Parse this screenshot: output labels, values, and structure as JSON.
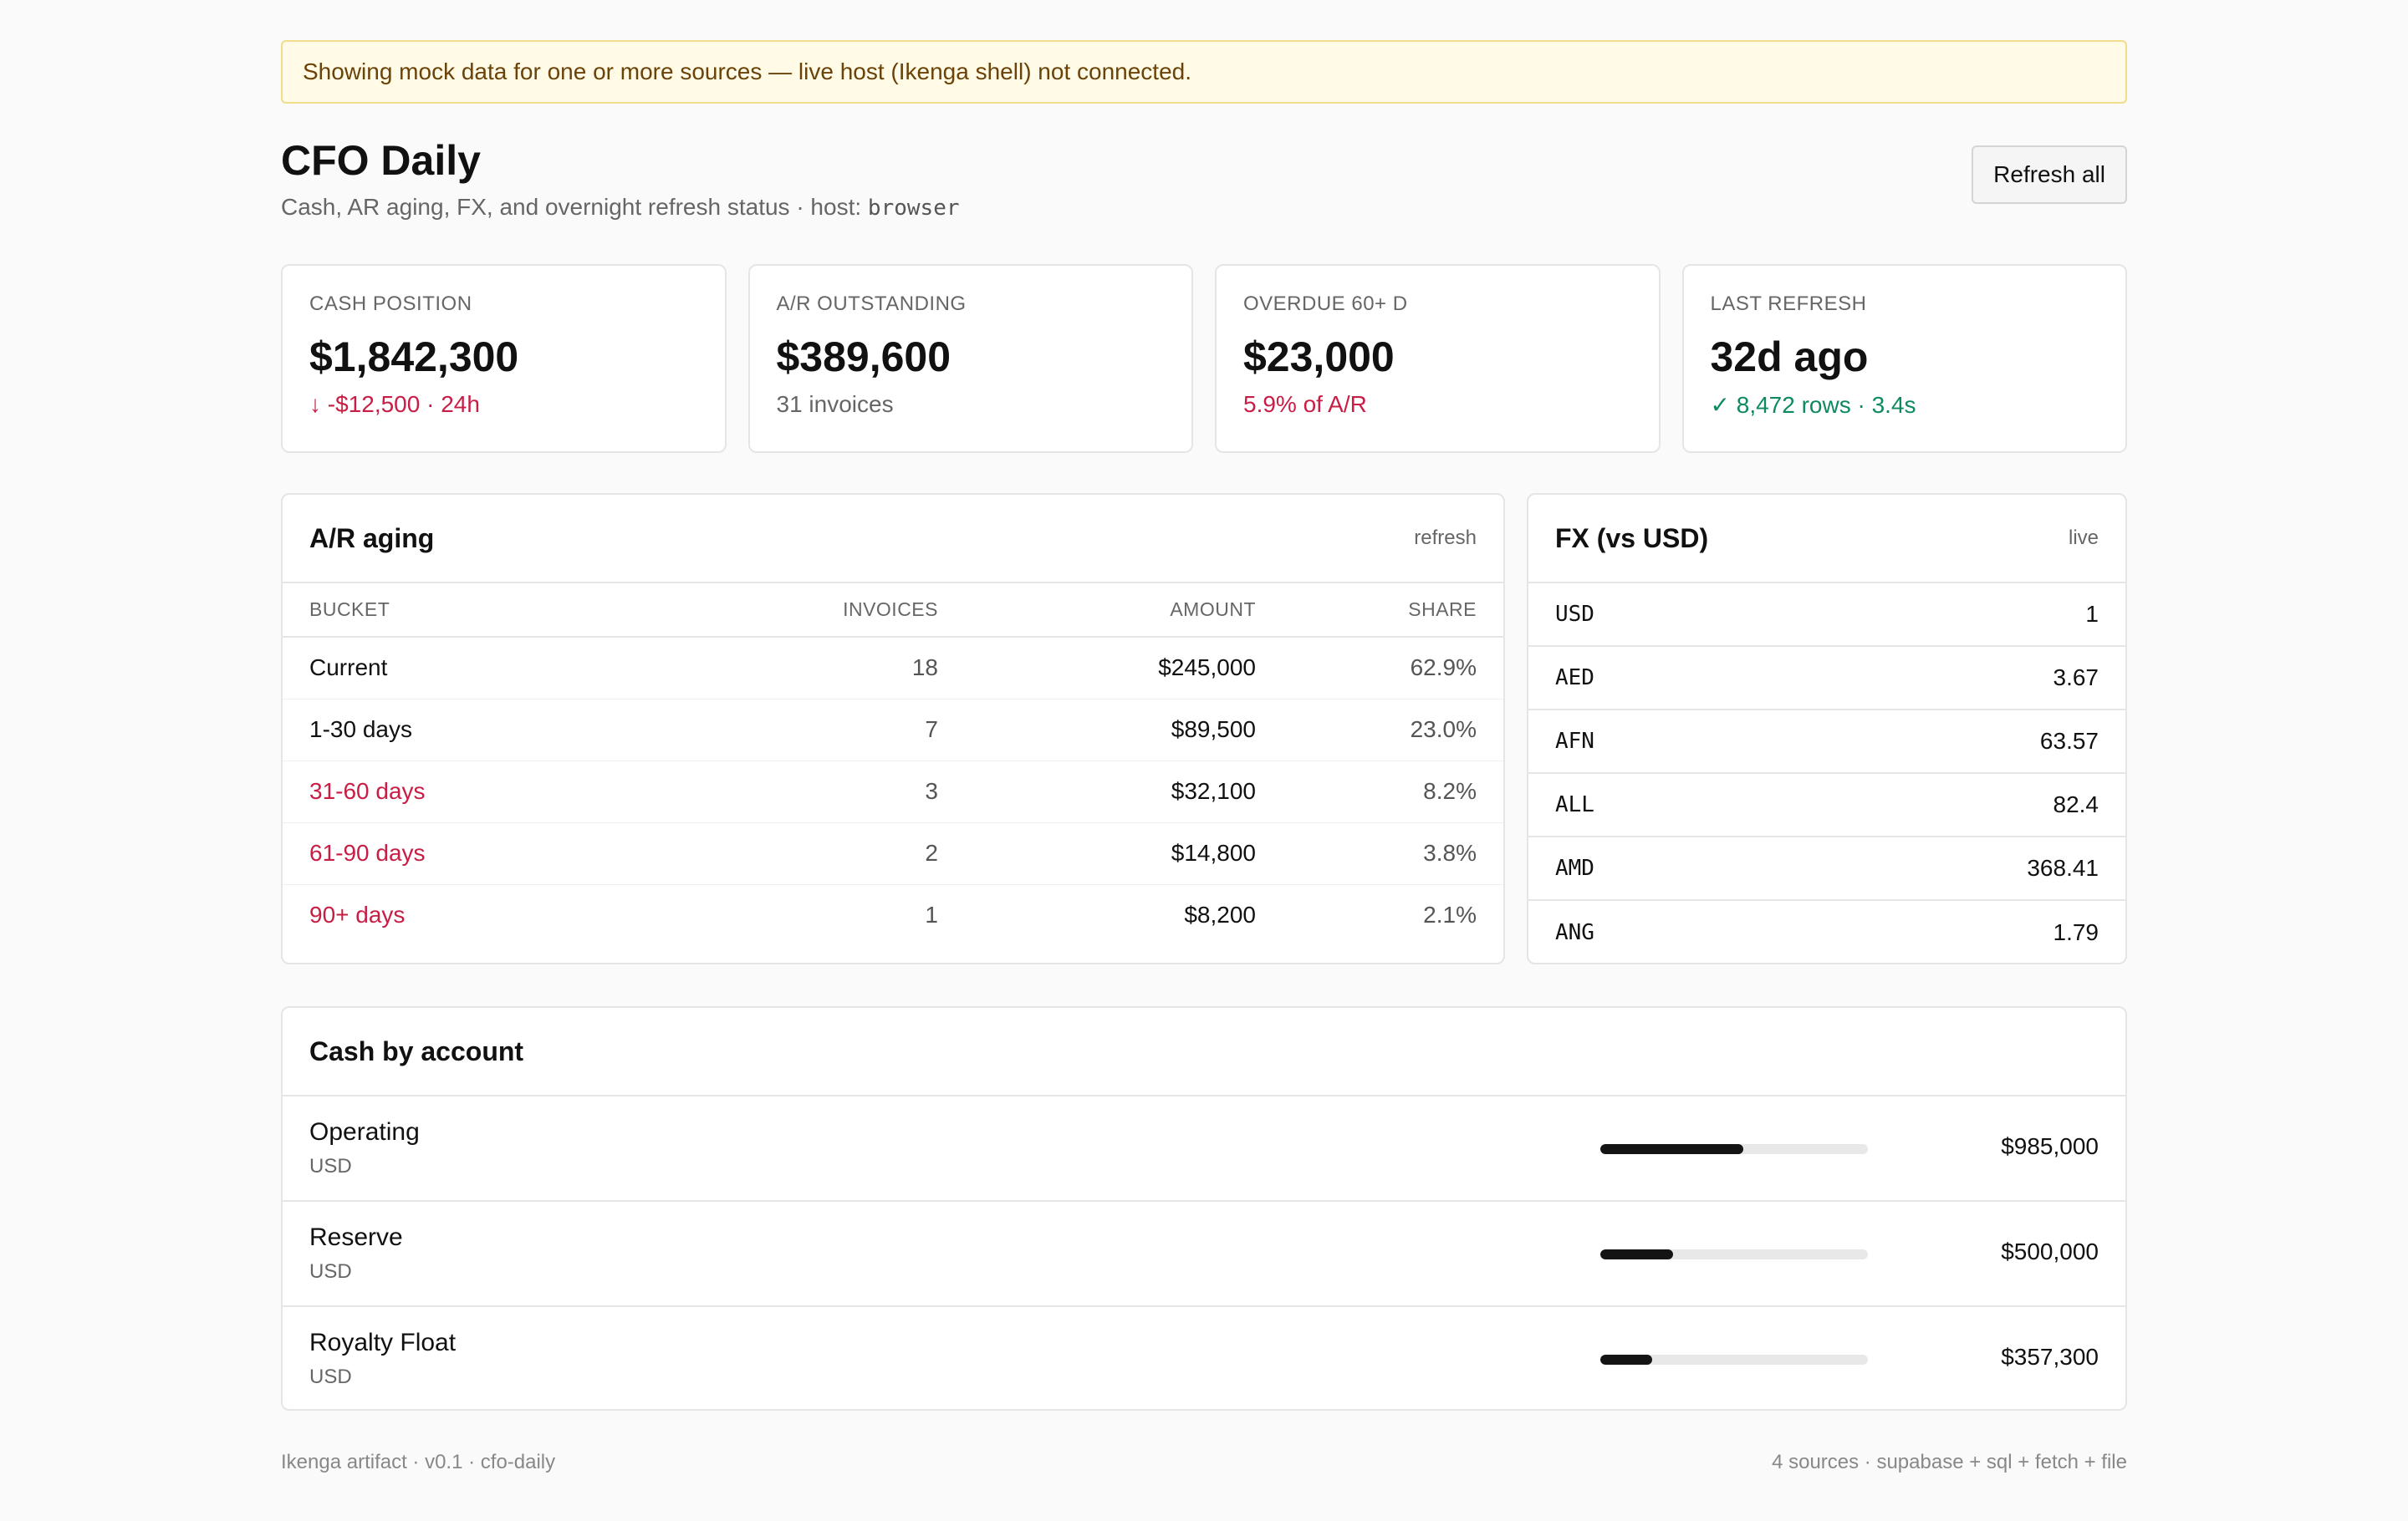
{
  "banner": {
    "text": "Showing mock data for one or more sources — live host (Ikenga shell) not connected."
  },
  "header": {
    "title": "CFO Daily",
    "subtitle": "Cash, AR aging, FX, and overnight refresh status · host: ",
    "host": "browser",
    "refresh_label": "Refresh all"
  },
  "kpis": [
    {
      "label": "CASH POSITION",
      "value": "$1,842,300",
      "sub": "↓ -$12,500 · 24h",
      "tone": "neg"
    },
    {
      "label": "A/R OUTSTANDING",
      "value": "$389,600",
      "sub": "31 invoices",
      "tone": "muted"
    },
    {
      "label": "OVERDUE 60+ D",
      "value": "$23,000",
      "sub": "5.9% of A/R",
      "tone": "neg"
    },
    {
      "label": "LAST REFRESH",
      "value": "32d ago",
      "sub": "✓ 8,472 rows · 3.4s",
      "tone": "pos"
    }
  ],
  "aging": {
    "title": "A/R aging",
    "action": "refresh",
    "columns": [
      "BUCKET",
      "INVOICES",
      "AMOUNT",
      "SHARE"
    ],
    "rows": [
      {
        "bucket": "Current",
        "invoices": "18",
        "amount": "$245,000",
        "share": "62.9%",
        "late": false
      },
      {
        "bucket": "1-30 days",
        "invoices": "7",
        "amount": "$89,500",
        "share": "23.0%",
        "late": false
      },
      {
        "bucket": "31-60 days",
        "invoices": "3",
        "amount": "$32,100",
        "share": "8.2%",
        "late": true
      },
      {
        "bucket": "61-90 days",
        "invoices": "2",
        "amount": "$14,800",
        "share": "3.8%",
        "late": true
      },
      {
        "bucket": "90+ days",
        "invoices": "1",
        "amount": "$8,200",
        "share": "2.1%",
        "late": true
      }
    ]
  },
  "fx": {
    "title": "FX (vs USD)",
    "status": "live",
    "rates": [
      {
        "code": "USD",
        "rate": "1"
      },
      {
        "code": "AED",
        "rate": "3.67"
      },
      {
        "code": "AFN",
        "rate": "63.57"
      },
      {
        "code": "ALL",
        "rate": "82.4"
      },
      {
        "code": "AMD",
        "rate": "368.41"
      },
      {
        "code": "ANG",
        "rate": "1.79"
      }
    ]
  },
  "cash": {
    "title": "Cash by account",
    "accounts": [
      {
        "name": "Operating",
        "currency": "USD",
        "amount": "$985,000",
        "share": 0.535
      },
      {
        "name": "Reserve",
        "currency": "USD",
        "amount": "$500,000",
        "share": 0.271
      },
      {
        "name": "Royalty Float",
        "currency": "USD",
        "amount": "$357,300",
        "share": 0.194
      }
    ]
  },
  "footer": {
    "left": "Ikenga artifact · v0.1 · cfo-daily",
    "right": "4 sources · supabase + sql + fetch + file"
  },
  "colors": {
    "negative": "#c81d45",
    "positive": "#0e8a5f",
    "bar": "#141414",
    "banner_bg": "#fffbe6"
  }
}
